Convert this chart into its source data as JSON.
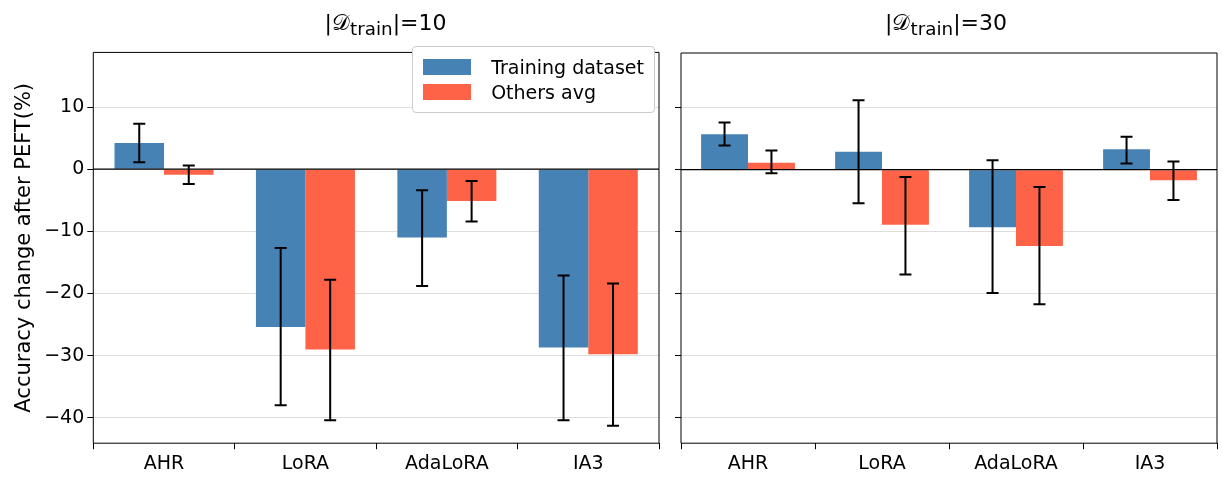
{
  "chart_data": [
    {
      "type": "bar",
      "title": "|𝒟$_{train}$|=10",
      "ylabel": "Accuracy change after PEFT(%)",
      "categories": [
        "AHR",
        "LoRA",
        "AdaLoRA",
        "IA3"
      ],
      "series": [
        {
          "name": "Training dataset",
          "color": "#4682b4",
          "values": [
            4.2,
            -25.4,
            -11.0,
            -28.7
          ],
          "errors": [
            [
              1.1,
              7.3
            ],
            [
              -38.0,
              -12.7
            ],
            [
              -18.8,
              -3.4
            ],
            [
              -40.4,
              -17.1
            ]
          ]
        },
        {
          "name": "Others avg",
          "color": "#ff6347",
          "values": [
            -0.9,
            -29.0,
            -5.1,
            -29.8
          ],
          "errors": [
            [
              -2.4,
              0.6
            ],
            [
              -40.4,
              -17.8
            ],
            [
              -8.4,
              -1.9
            ],
            [
              -41.3,
              -18.4
            ]
          ]
        }
      ],
      "ylim": [
        -44.1,
        18.8
      ],
      "yticks": [
        -40,
        -30,
        -20,
        -10,
        0,
        10
      ],
      "grid": "y",
      "legend": "top right",
      "ref_lines": [
        {
          "axis": "y",
          "value": 0,
          "color": "#000000"
        }
      ]
    },
    {
      "type": "bar",
      "title": "|𝒟$_{train}$|=30",
      "categories": [
        "AHR",
        "LoRA",
        "AdaLoRA",
        "IA3"
      ],
      "series": [
        {
          "color": "#4682b4",
          "values": [
            5.7,
            2.9,
            -9.3,
            3.3
          ],
          "errors": [
            [
              3.9,
              7.6
            ],
            [
              -5.4,
              11.2
            ],
            [
              -19.9,
              1.5
            ],
            [
              1.0,
              5.3
            ]
          ]
        },
        {
          "color": "#ff6347",
          "values": [
            1.1,
            -8.9,
            -12.3,
            -1.7
          ],
          "errors": [
            [
              -0.6,
              3.1
            ],
            [
              -16.9,
              -1.2
            ],
            [
              -21.7,
              -2.8
            ],
            [
              -4.9,
              1.3
            ]
          ]
        }
      ],
      "ylim": [
        -44.1,
        18.8
      ],
      "yticks": [
        -40,
        -30,
        -20,
        -10,
        0,
        10
      ],
      "grid": "y",
      "tick_labels": "x",
      "ref_lines": [
        {
          "axis": "y",
          "value": 0,
          "color": "#000000"
        }
      ]
    }
  ]
}
